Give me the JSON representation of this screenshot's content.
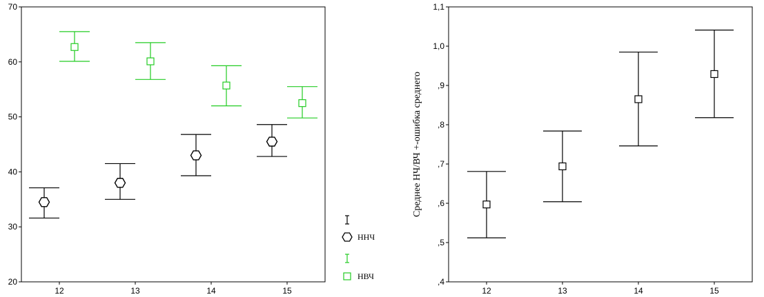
{
  "chart_data": [
    {
      "type": "errorbar",
      "categories": [
        "12",
        "13",
        "14",
        "15"
      ],
      "xlim": [
        11.5,
        15.5
      ],
      "ylim": [
        20,
        70
      ],
      "yticks": [
        "20",
        "30",
        "40",
        "50",
        "60",
        "70"
      ],
      "ylabel": "",
      "xlabel": "",
      "grid": false,
      "legend_position": "right-bottom",
      "series": [
        {
          "name": "ННЧ",
          "color": "#000000",
          "marker": "circle",
          "x": [
            11.8,
            12.8,
            13.8,
            14.8
          ],
          "mean": [
            34.5,
            38.0,
            43.0,
            45.5
          ],
          "lower": [
            31.6,
            35.0,
            39.3,
            42.8
          ],
          "upper": [
            37.1,
            41.5,
            46.8,
            48.6
          ]
        },
        {
          "name": "НВЧ",
          "color": "#22cc22",
          "marker": "square",
          "x": [
            12.2,
            13.2,
            14.2,
            15.2
          ],
          "mean": [
            62.7,
            60.1,
            55.7,
            52.5
          ],
          "lower": [
            60.1,
            56.8,
            52.0,
            49.8
          ],
          "upper": [
            65.5,
            63.5,
            59.3,
            55.5
          ]
        }
      ]
    },
    {
      "type": "errorbar",
      "categories": [
        "12",
        "13",
        "14",
        "15"
      ],
      "xlim": [
        11.5,
        15.5
      ],
      "ylim": [
        0.4,
        1.1
      ],
      "yticks": [
        ",4",
        ",5",
        ",6",
        ",7",
        ",8",
        ",9",
        "1,0",
        "1,1"
      ],
      "ylabel": "Среднее НЧ/ВЧ +-ошибка среднего",
      "xlabel": "",
      "grid": false,
      "series": [
        {
          "color": "#000000",
          "marker": "square",
          "x": [
            12,
            13,
            14,
            15
          ],
          "mean": [
            0.597,
            0.694,
            0.865,
            0.929
          ],
          "lower": [
            0.512,
            0.604,
            0.746,
            0.818
          ],
          "upper": [
            0.681,
            0.784,
            0.985,
            1.041
          ]
        }
      ]
    }
  ],
  "legend": {
    "items": [
      {
        "label": "",
        "color": "#000000",
        "symbol": "errorbar-icon"
      },
      {
        "label": "ННЧ",
        "color": "#000000",
        "symbol": "circle-marker-icon"
      },
      {
        "label": "",
        "color": "#22cc22",
        "symbol": "errorbar-icon"
      },
      {
        "label": "НВЧ",
        "color": "#22cc22",
        "symbol": "square-marker-icon"
      }
    ]
  }
}
